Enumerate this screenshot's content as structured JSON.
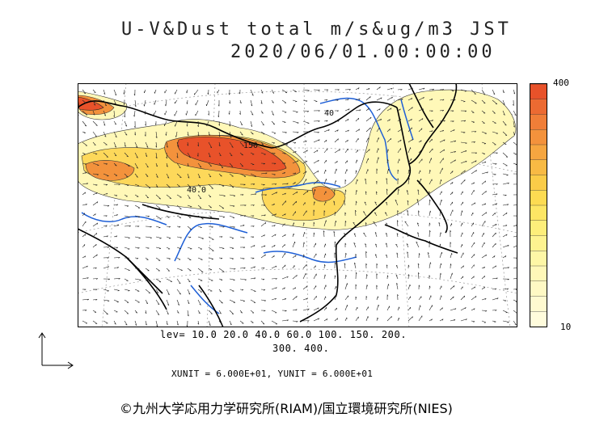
{
  "title": {
    "line1": "U-V&Dust total m/s&ug/m3 JST",
    "line2": "2020/06/01.00:00:00"
  },
  "colorbar": {
    "max_label": "400",
    "min_label": "10",
    "colors": [
      "#e8522a",
      "#ec6a32",
      "#f07e38",
      "#f3923c",
      "#f6a640",
      "#f8ba44",
      "#fbcc48",
      "#fcdb52",
      "#fde664",
      "#fdee7a",
      "#fef390",
      "#fef7a6",
      "#fff8b8",
      "#fff9c4",
      "#fffad0",
      "#fffcdc"
    ]
  },
  "contour_levels": {
    "line1": "lev= 10.0 20.0 40.0 60.0 100. 150. 200.",
    "line2": "300. 400."
  },
  "map_labels": {
    "label_150": "150",
    "label_400": "40.0",
    "label_40b": "40"
  },
  "units_text": "XUNIT = 6.000E+01, YUNIT = 6.000E+01",
  "credit": "©九州大学応用力学研究所(RIAM)/国立環境研究所(NIES)",
  "colors": {
    "high_dust": "#e8522a",
    "low_dust": "#fff8b8",
    "river": "#1e5fd6",
    "border": "#000000"
  }
}
